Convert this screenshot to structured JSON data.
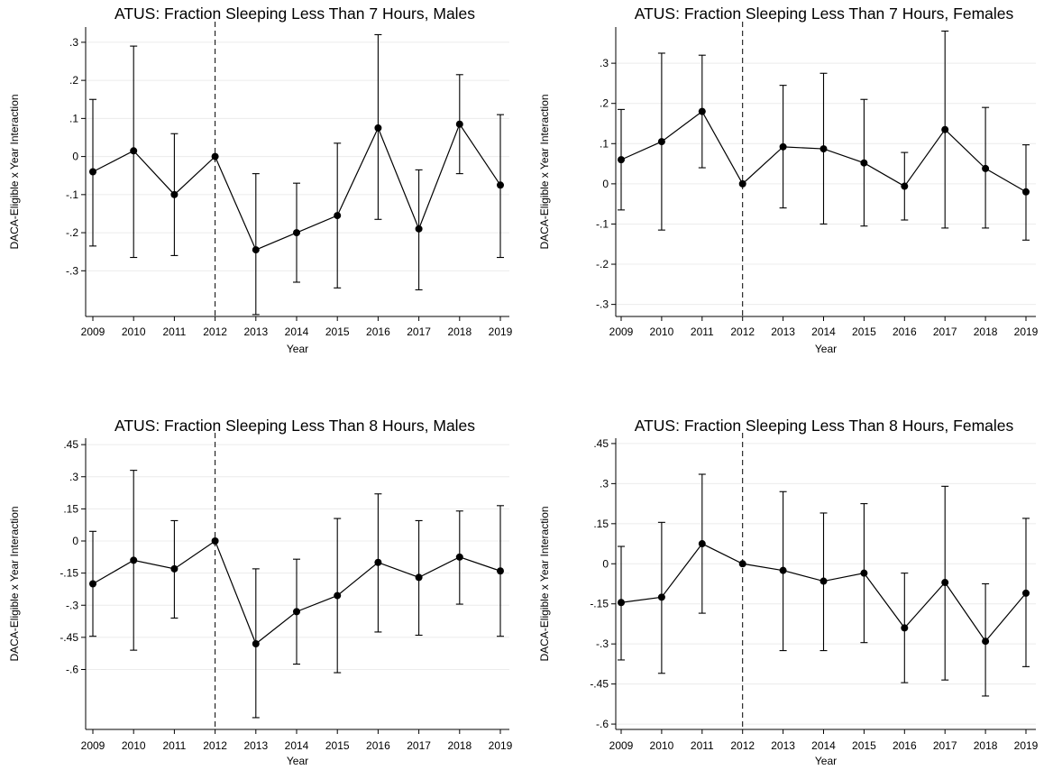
{
  "chart_data": [
    {
      "type": "line",
      "title": "ATUS: Fraction Sleeping Less Than 7 Hours, Males",
      "xlabel": "Year",
      "ylabel": "DACA-Eligible x Year Interaction",
      "categories": [
        "2009",
        "2010",
        "2011",
        "2012",
        "2013",
        "2014",
        "2015",
        "2016",
        "2017",
        "2018",
        "2019"
      ],
      "yticks": [
        ".3",
        ".2",
        ".1",
        "0",
        "-.1",
        "-.2",
        "-.3"
      ],
      "ytick_values": [
        0.3,
        0.2,
        0.1,
        0,
        -0.1,
        -0.2,
        -0.3
      ],
      "ylim": [
        -0.42,
        0.34
      ],
      "reference_x": "2012",
      "series": [
        {
          "values": [
            -0.04,
            0.015,
            -0.1,
            0,
            -0.245,
            -0.2,
            -0.155,
            0.075,
            -0.19,
            0.085,
            -0.075
          ],
          "ci_low": [
            -0.235,
            -0.265,
            -0.26,
            0,
            -0.415,
            -0.33,
            -0.345,
            -0.165,
            -0.35,
            -0.045,
            -0.265
          ],
          "ci_high": [
            0.15,
            0.29,
            0.06,
            0,
            -0.045,
            -0.07,
            0.035,
            0.32,
            -0.035,
            0.215,
            0.11
          ]
        }
      ]
    },
    {
      "type": "line",
      "title": "ATUS: Fraction Sleeping Less Than 7 Hours, Females",
      "xlabel": "Year",
      "ylabel": "DACA-Eligible x Year Interaction",
      "categories": [
        "2009",
        "2010",
        "2011",
        "2012",
        "2013",
        "2014",
        "2015",
        "2016",
        "2017",
        "2018",
        "2019"
      ],
      "yticks": [
        ".3",
        ".2",
        ".1",
        "0",
        "-.1",
        "-.2",
        "-.3"
      ],
      "ytick_values": [
        0.3,
        0.2,
        0.1,
        0,
        -0.1,
        -0.2,
        -0.3
      ],
      "ylim": [
        -0.33,
        0.39
      ],
      "reference_x": "2012",
      "series": [
        {
          "values": [
            0.06,
            0.105,
            0.18,
            0,
            0.092,
            0.087,
            0.052,
            -0.006,
            0.135,
            0.038,
            -0.02
          ],
          "ci_low": [
            -0.065,
            -0.115,
            0.04,
            0,
            -0.06,
            -0.1,
            -0.105,
            -0.09,
            -0.11,
            -0.11,
            -0.14
          ],
          "ci_high": [
            0.185,
            0.325,
            0.32,
            0,
            0.245,
            0.275,
            0.21,
            0.078,
            0.38,
            0.19,
            0.097
          ]
        }
      ]
    },
    {
      "type": "line",
      "title": "ATUS: Fraction Sleeping Less Than 8 Hours, Males",
      "xlabel": "Year",
      "ylabel": "DACA-Eligible x Year Interaction",
      "categories": [
        "2009",
        "2010",
        "2011",
        "2012",
        "2013",
        "2014",
        "2015",
        "2016",
        "2017",
        "2018",
        "2019"
      ],
      "yticks": [
        ".45",
        ".3",
        ".15",
        "0",
        "-.15",
        "-.3",
        "-.45",
        "-.6"
      ],
      "ytick_values": [
        0.45,
        0.3,
        0.15,
        0,
        -0.15,
        -0.3,
        -0.45,
        -0.6
      ],
      "ylim": [
        -0.88,
        0.48
      ],
      "reference_x": "2012",
      "series": [
        {
          "values": [
            -0.2,
            -0.09,
            -0.13,
            0,
            -0.48,
            -0.33,
            -0.255,
            -0.1,
            -0.17,
            -0.075,
            -0.14
          ],
          "ci_low": [
            -0.445,
            -0.51,
            -0.36,
            0,
            -0.825,
            -0.575,
            -0.615,
            -0.425,
            -0.44,
            -0.295,
            -0.445
          ],
          "ci_high": [
            0.045,
            0.33,
            0.095,
            0,
            -0.13,
            -0.085,
            0.105,
            0.22,
            0.095,
            0.14,
            0.165
          ]
        }
      ]
    },
    {
      "type": "line",
      "title": "ATUS: Fraction Sleeping Less Than 8 Hours, Females",
      "xlabel": "Year",
      "ylabel": "DACA-Eligible x Year Interaction",
      "categories": [
        "2009",
        "2010",
        "2011",
        "2012",
        "2013",
        "2014",
        "2015",
        "2016",
        "2017",
        "2018",
        "2019"
      ],
      "yticks": [
        ".45",
        ".3",
        ".15",
        "0",
        "-.15",
        "-.3",
        "-.45",
        "-.6"
      ],
      "ytick_values": [
        0.45,
        0.3,
        0.15,
        0,
        -0.15,
        -0.3,
        -0.45,
        -0.6
      ],
      "ylim": [
        -0.62,
        0.47
      ],
      "reference_x": "2012",
      "series": [
        {
          "values": [
            -0.145,
            -0.125,
            0.075,
            0,
            -0.025,
            -0.065,
            -0.035,
            -0.24,
            -0.07,
            -0.29,
            -0.11
          ],
          "ci_low": [
            -0.36,
            -0.41,
            -0.185,
            0,
            -0.325,
            -0.325,
            -0.295,
            -0.445,
            -0.435,
            -0.495,
            -0.385
          ],
          "ci_high": [
            0.065,
            0.155,
            0.335,
            0,
            0.27,
            0.19,
            0.225,
            -0.035,
            0.29,
            -0.075,
            0.17
          ]
        }
      ]
    }
  ]
}
